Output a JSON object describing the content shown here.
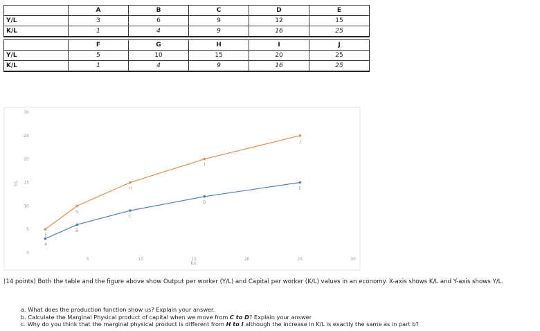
{
  "tables": [
    {
      "header": [
        "A",
        "B",
        "C",
        "D",
        "E"
      ],
      "rows": [
        {
          "label": "Y/L",
          "cells": [
            3,
            6,
            9,
            12,
            15
          ]
        },
        {
          "label": "K/L",
          "cells": [
            1,
            4,
            9,
            16,
            25
          ]
        }
      ]
    },
    {
      "header": [
        "F",
        "G",
        "H",
        "I",
        "J"
      ],
      "rows": [
        {
          "label": "Y/L",
          "cells": [
            5,
            10,
            15,
            20,
            25
          ]
        },
        {
          "label": "K/L",
          "cells": [
            1,
            4,
            9,
            16,
            25
          ]
        }
      ]
    }
  ],
  "chart_data": {
    "type": "line",
    "xlabel": "K/L",
    "ylabel": "Y/L",
    "x": [
      1,
      4,
      9,
      16,
      25
    ],
    "series": [
      {
        "color": "#4a7ebf",
        "values": [
          3,
          6,
          9,
          12,
          15
        ],
        "point_labels": [
          "A",
          "B",
          "C",
          "D",
          "E"
        ]
      },
      {
        "color": "#f08a4b",
        "values": [
          5,
          10,
          15,
          20,
          25
        ],
        "point_labels": [
          "F",
          "G",
          "H",
          "I",
          "J"
        ]
      }
    ],
    "xlim": [
      0,
      30
    ],
    "xticks": [
      5,
      10,
      15,
      20,
      25,
      30
    ],
    "ylim": [
      0,
      30
    ],
    "yticks": [
      0,
      5,
      10,
      15,
      20,
      25,
      30
    ]
  },
  "text": {
    "intro": "(14 points) Both the table and the figure above show Output per worker (Y/L) and Capital per worker (K/L) values in an economy. X-axis shows K/L and Y-axis shows Y/L.",
    "questions": [
      [
        "a. What does the production function show us? Explain your answer."
      ],
      [
        "b. Calculate the Marginal Physical product of capital when we move from ",
        "C to D",
        "? Explain your answer"
      ],
      [
        "c. Why do you think that the marginal physical product is different from ",
        "H to I",
        " although the increase in K/L is exactly the same as in part b?"
      ]
    ]
  }
}
